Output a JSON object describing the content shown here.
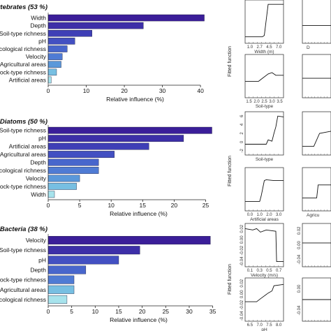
{
  "chart_data": [
    {
      "type": "bar",
      "title": "Invertebrates (53 %)",
      "categories": [
        "Width",
        "Depth",
        "Soil-type richness",
        "pH",
        "Ecological richness",
        "Velocity",
        "Agricultural areas",
        "Rock-type richness",
        "Artificial areas"
      ],
      "values": [
        41,
        25,
        11.5,
        7,
        5,
        3.7,
        3.4,
        2.2,
        0.8
      ],
      "xlabel": "Relative influence (%)",
      "xlim": [
        0,
        42
      ],
      "xticks": [
        0,
        10,
        20,
        30,
        40
      ]
    },
    {
      "type": "bar",
      "title": "Diatoms (50 %)",
      "categories": [
        "Soil-type richness",
        "pH",
        "Artificial areas",
        "Agricultural areas",
        "Depth",
        "Ecological richness",
        "Velocity",
        "Rock-type richness",
        "Width"
      ],
      "values": [
        26,
        21.5,
        16,
        10.5,
        8,
        8,
        5,
        4.5,
        1
      ],
      "xlabel": "Relative influence (%)",
      "xlim": [
        0,
        26.5
      ],
      "xticks": [
        0,
        5,
        10,
        15,
        20,
        25
      ]
    },
    {
      "type": "bar",
      "title": "Bacteria (38 %)",
      "categories": [
        "Velocity",
        "Soil-type richness",
        "pH",
        "Depth",
        "Rock-type richness",
        "Agricultural areas",
        "Ecological richness"
      ],
      "values": [
        34.5,
        19.5,
        15,
        8,
        5.5,
        5.5,
        4
      ],
      "xlabel": "Relative influence (%)",
      "xlim": [
        0,
        35.5
      ],
      "xticks": [
        0,
        5,
        10,
        15,
        20,
        25,
        30,
        35
      ]
    },
    {
      "type": "line",
      "ylabel": "Fitted function",
      "panels": [
        {
          "xlabel": "Width (m)",
          "xticks": [
            "1.0",
            "2.7",
            "4.5",
            "7.0"
          ]
        },
        {
          "xlabel": "D"
        },
        {
          "xlabel": "Soil-type",
          "xticks": [
            "1.5",
            "2.0",
            "2.5",
            "3.0",
            "3.5"
          ]
        },
        {
          "xlabel": ""
        },
        {
          "xlabel": "Soil-type",
          "yticks": [
            "-2",
            "0",
            "2",
            "4",
            "6"
          ]
        },
        {
          "xlabel": ""
        },
        {
          "xlabel": "Artificial areas",
          "xticks": [
            "0.0",
            "1.0",
            "2.0",
            "3.0"
          ]
        },
        {
          "xlabel": "Agricu"
        },
        {
          "xlabel": "Velocity (m/s)",
          "xticks": [
            "0.1",
            "0.3",
            "0.5",
            "0.7"
          ],
          "yticks": [
            "-0.04",
            "-0.02",
            "0.00",
            "0.02"
          ]
        },
        {
          "xlabel": "",
          "yticks": [
            "-0.04",
            "0.00",
            "0.02"
          ]
        },
        {
          "xlabel": "pH",
          "xticks": [
            "6.5",
            "7.0",
            "7.5",
            "8.0"
          ],
          "yticks": [
            "-0.04",
            "-0.02",
            "0.00",
            "0.02"
          ]
        },
        {
          "xlabel": "",
          "yticks": [
            "-0.04",
            "0.00"
          ]
        }
      ]
    }
  ],
  "colors": [
    "#3b1e99",
    "#3d2fa8",
    "#3f3fb6",
    "#4350c2",
    "#4866cc",
    "#4f7bd4",
    "#5a98da",
    "#77bfe2",
    "#a7e3ec"
  ],
  "axis_color": "#222222"
}
